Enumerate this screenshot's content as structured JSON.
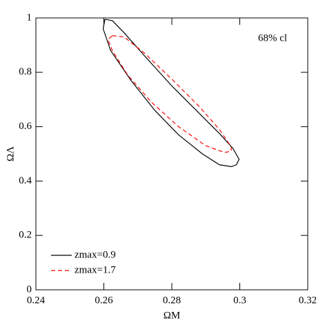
{
  "chart_data": {
    "type": "line",
    "x_label": "ΩM",
    "y_label": "ΩΛ",
    "annotation": "68% cl",
    "xlim": [
      0.24,
      0.32
    ],
    "xticks": [
      0.24,
      0.26,
      0.28,
      0.3,
      0.32
    ],
    "ylim": [
      0,
      1
    ],
    "yticks": [
      0,
      0.2,
      0.4,
      0.6,
      0.8,
      1
    ],
    "legend": "lower left",
    "series": [
      {
        "name": "zmax=0.9",
        "color": "#000000",
        "dash": false,
        "x": [
          0.2603,
          0.2625,
          0.266,
          0.272,
          0.28,
          0.288,
          0.294,
          0.298,
          0.2998,
          0.299,
          0.2975,
          0.294,
          0.289,
          0.282,
          0.275,
          0.268,
          0.262,
          0.2598,
          0.2603
        ],
        "values": [
          0.995,
          0.99,
          0.945,
          0.86,
          0.75,
          0.65,
          0.575,
          0.52,
          0.48,
          0.46,
          0.453,
          0.46,
          0.5,
          0.57,
          0.66,
          0.77,
          0.88,
          0.96,
          0.995
        ]
      },
      {
        "name": "zmax=1.7",
        "color": "#ff0000",
        "dash": true,
        "x": [
          0.2625,
          0.266,
          0.272,
          0.28,
          0.288,
          0.294,
          0.2975,
          0.2975,
          0.2955,
          0.29,
          0.282,
          0.274,
          0.267,
          0.2625,
          0.2612,
          0.2625
        ],
        "values": [
          0.935,
          0.93,
          0.87,
          0.775,
          0.675,
          0.59,
          0.525,
          0.51,
          0.505,
          0.53,
          0.6,
          0.69,
          0.79,
          0.88,
          0.92,
          0.935
        ]
      }
    ]
  }
}
